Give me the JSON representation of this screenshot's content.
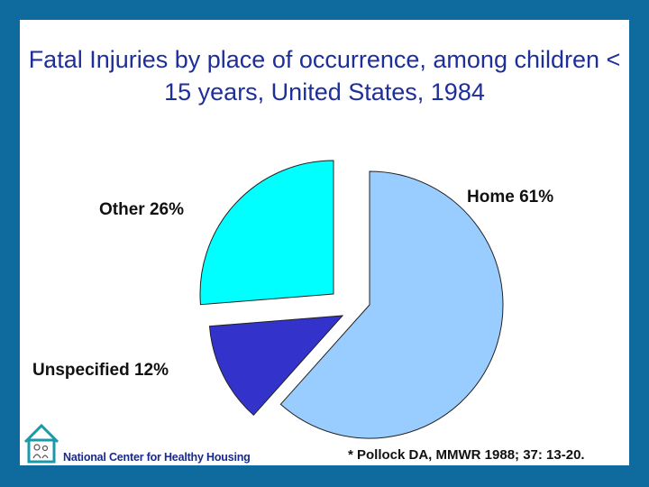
{
  "title": "Fatal Injuries by place of occurrence, among children < 15 years, United States, 1984",
  "chart_data": {
    "type": "pie",
    "title": "Fatal Injuries by place of occurrence, among children < 15 years, United States, 1984",
    "slices": [
      {
        "name": "Home",
        "value": 61,
        "label": "Home  61%",
        "color": "#99ccff"
      },
      {
        "name": "Unspecified",
        "value": 12,
        "label": "Unspecified 12%",
        "color": "#3333cc"
      },
      {
        "name": "Other",
        "value": 26,
        "label": "Other 26%",
        "color": "#00ffff"
      }
    ],
    "exploded": true
  },
  "footer": {
    "organization": "National Center for Healthy Housing",
    "citation": "* Pollock DA, MMWR 1988; 37: 13-20."
  },
  "colors": {
    "border": "#0f6a9e",
    "title": "#1f2f9a"
  },
  "icons": {
    "logo": "house-family-icon"
  }
}
